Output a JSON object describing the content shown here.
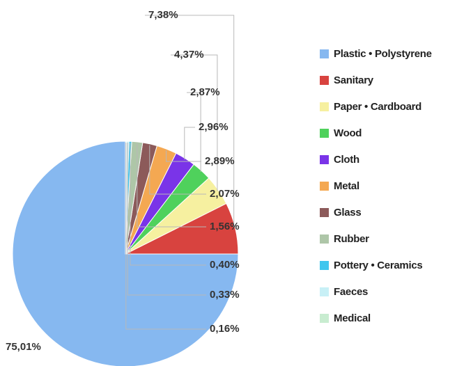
{
  "chart_data": {
    "type": "pie",
    "categories": [
      "Plastic • Polystyrene",
      "Sanitary",
      "Paper • Cardboard",
      "Wood",
      "Cloth",
      "Metal",
      "Glass",
      "Rubber",
      "Pottery • Ceramics",
      "Faeces",
      "Medical"
    ],
    "values": [
      75.01,
      7.38,
      4.37,
      2.87,
      2.96,
      2.89,
      2.07,
      1.56,
      0.4,
      0.33,
      0.16
    ],
    "value_labels": [
      "75,01%",
      "7,38%",
      "4,37%",
      "2,87%",
      "2,96%",
      "2,89%",
      "2,07%",
      "1,56%",
      "0,40%",
      "0,33%",
      "0,16%"
    ],
    "colors": [
      "#86b8f0",
      "#d8433f",
      "#f6f0a0",
      "#4fd15c",
      "#7a34e8",
      "#f4a852",
      "#8c5a5a",
      "#aec6a8",
      "#3fc6ee",
      "#c8f0f6",
      "#c8ecd0"
    ],
    "start_angle_deg": 90,
    "direction": "counterclockwise",
    "legend_position": "right"
  }
}
